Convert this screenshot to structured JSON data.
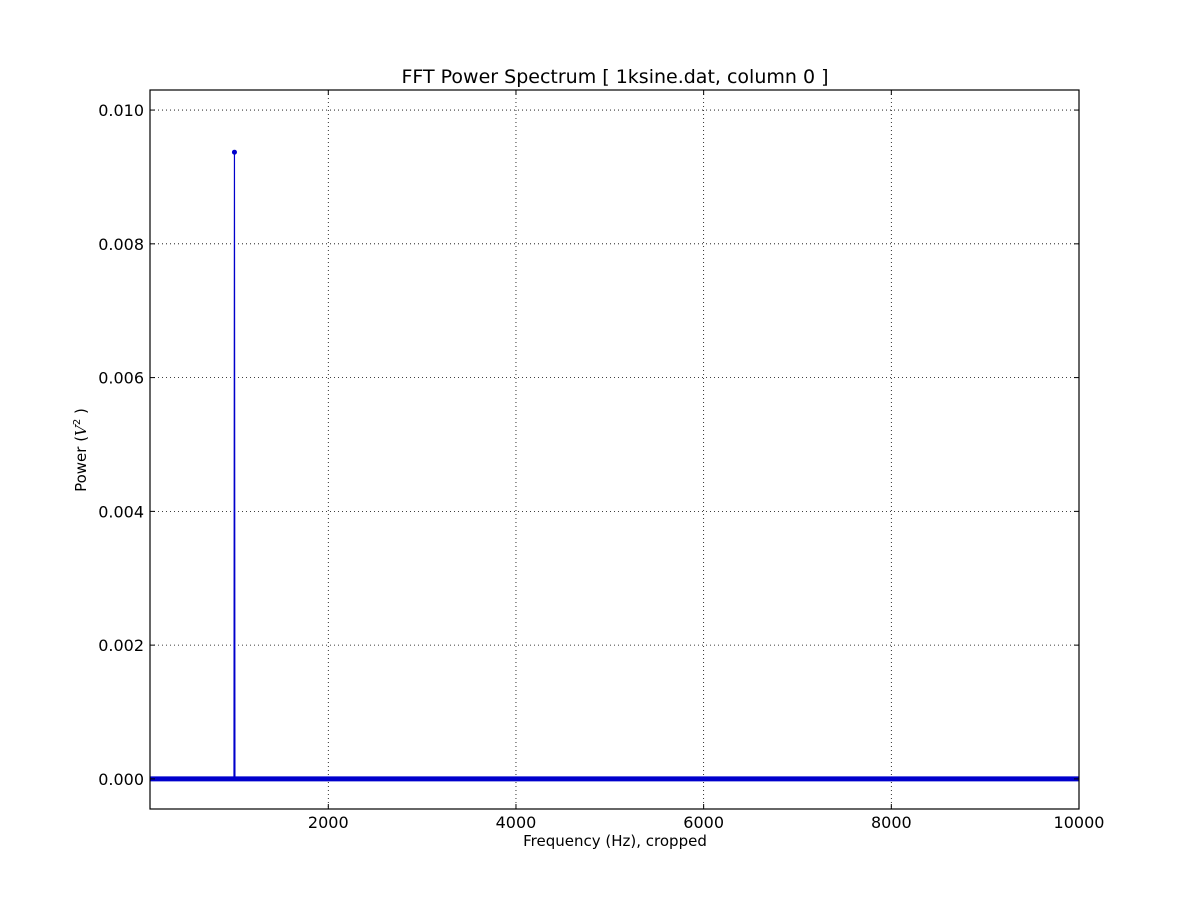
{
  "chart_data": {
    "type": "line",
    "title": "FFT Power Spectrum  [ 1ksine.dat, column 0 ]",
    "xlabel": "Frequency (Hz),  cropped",
    "ylabel_prefix": "Power (",
    "ylabel_var": "V",
    "ylabel_exp": "2",
    "ylabel_suffix": " )",
    "xlim": [
      100,
      10000
    ],
    "ylim": [
      -0.00045,
      0.0103
    ],
    "xticks": [
      2000,
      4000,
      6000,
      8000,
      10000
    ],
    "xtick_labels": [
      "2000",
      "4000",
      "6000",
      "8000",
      "10000"
    ],
    "yticks": [
      0.0,
      0.002,
      0.004,
      0.006,
      0.008,
      0.01
    ],
    "ytick_labels": [
      "0.000",
      "0.002",
      "0.004",
      "0.006",
      "0.008",
      "0.010"
    ],
    "grid": true,
    "marker": "dot",
    "series": [
      {
        "color": "#0000cc",
        "baseline_value": 0.0,
        "baseline_range": [
          100,
          10000
        ],
        "peak": {
          "x": 1000,
          "y": 0.00937
        },
        "x": [
          100,
          980,
          995,
          1000,
          1005,
          1020,
          10000
        ],
        "y": [
          0.0,
          0.0,
          0.0,
          0.00937,
          0.0,
          0.0,
          0.0
        ]
      }
    ]
  }
}
